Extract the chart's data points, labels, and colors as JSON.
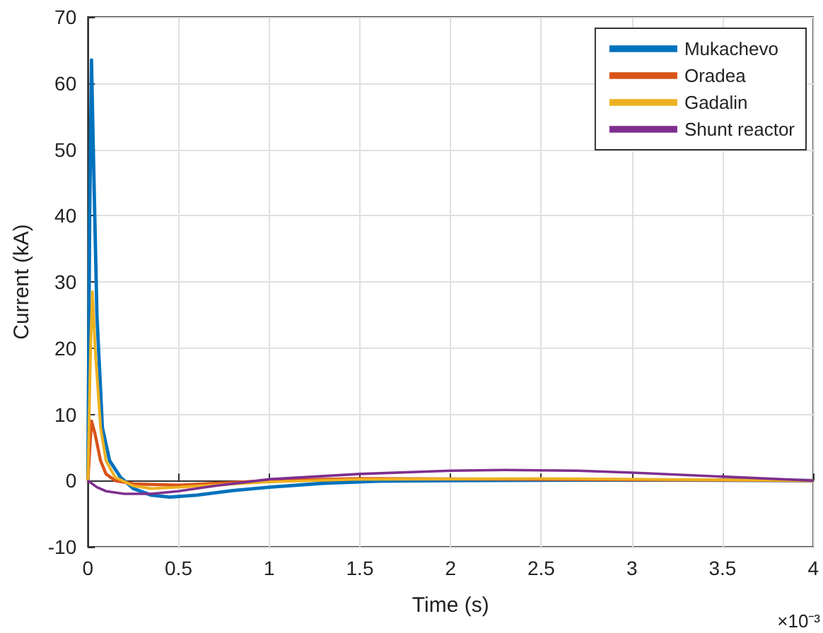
{
  "chart_data": {
    "type": "line",
    "xlabel": "Time (s)",
    "ylabel": "Current (kA)",
    "annotations": [
      "×10⁻³"
    ],
    "xlim": [
      0,
      4
    ],
    "xticks": [
      0,
      0.5,
      1,
      1.5,
      2,
      2.5,
      3,
      3.5,
      4
    ],
    "ylim": [
      -10,
      70
    ],
    "yticks": [
      -10,
      0,
      10,
      20,
      30,
      40,
      50,
      60,
      70
    ],
    "grid": true,
    "legend": "top right",
    "marker": "none",
    "line_style": "solid",
    "series": [
      {
        "name": "Mukachevo",
        "color": "#0072bd",
        "x": [
          0,
          0.01,
          0.02,
          0.03,
          0.05,
          0.08,
          0.12,
          0.18,
          0.25,
          0.35,
          0.45,
          0.6,
          0.8,
          1.0,
          1.3,
          1.6,
          2,
          3,
          4
        ],
        "values": [
          0,
          40,
          63.5,
          50,
          25,
          8,
          3,
          0.5,
          -1.2,
          -2.2,
          -2.5,
          -2.2,
          -1.5,
          -1,
          -0.4,
          -0.1,
          0,
          0.1,
          0
        ]
      },
      {
        "name": "Oradea",
        "color": "#d95319",
        "x": [
          0,
          0.02,
          0.04,
          0.07,
          0.1,
          0.15,
          0.25,
          0.5,
          0.8,
          1,
          1.5,
          4
        ],
        "values": [
          0,
          9,
          7,
          3,
          1,
          0,
          -0.5,
          -0.7,
          -0.3,
          0,
          0.3,
          0
        ]
      },
      {
        "name": "Gadalin",
        "color": "#edb120",
        "x": [
          0,
          0.015,
          0.025,
          0.04,
          0.07,
          0.1,
          0.15,
          0.25,
          0.35,
          0.5,
          0.8,
          1.0,
          1.5,
          2.5,
          4
        ],
        "values": [
          0,
          20,
          28.5,
          20,
          8,
          3,
          0.5,
          -0.8,
          -1.2,
          -1,
          -0.5,
          -0.2,
          0.2,
          0.3,
          0
        ]
      },
      {
        "name": "Shunt reactor",
        "color": "#7e2f8e",
        "x": [
          0,
          0.05,
          0.1,
          0.2,
          0.35,
          0.5,
          0.7,
          1.0,
          1.5,
          2,
          2.3,
          2.7,
          3,
          3.5,
          4
        ],
        "values": [
          0,
          -1,
          -1.6,
          -2,
          -2,
          -1.6,
          -0.8,
          0.2,
          1,
          1.5,
          1.6,
          1.5,
          1.2,
          0.6,
          0
        ]
      }
    ]
  }
}
